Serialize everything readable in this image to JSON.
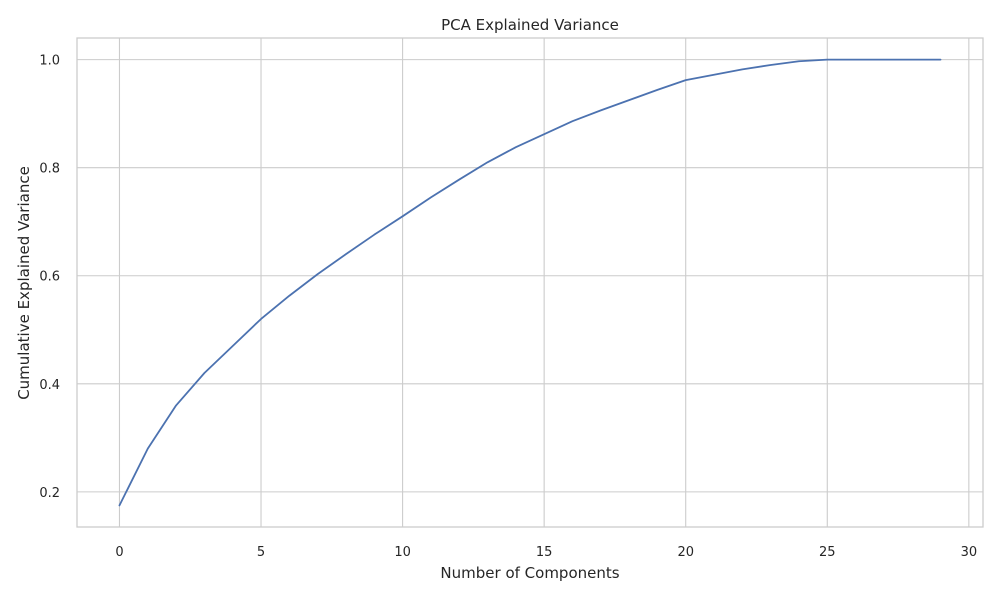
{
  "chart_data": {
    "type": "line",
    "title": "PCA Explained Variance",
    "xlabel": "Number of Components",
    "ylabel": "Cumulative Explained Variance",
    "xlim": [
      -1.5,
      30.5
    ],
    "ylim": [
      0.135,
      1.04
    ],
    "xticks": [
      0,
      5,
      10,
      15,
      20,
      25,
      30
    ],
    "xtick_labels": [
      "0",
      "5",
      "10",
      "15",
      "20",
      "25",
      "30"
    ],
    "yticks": [
      0.2,
      0.4,
      0.6,
      0.8,
      1.0
    ],
    "ytick_labels": [
      "0.2",
      "0.4",
      "0.6",
      "0.8",
      "1.0"
    ],
    "grid": true,
    "series": [
      {
        "name": "cumulative explained variance",
        "color": "#4c72b0",
        "x": [
          0,
          1,
          2,
          3,
          4,
          5,
          6,
          7,
          8,
          9,
          10,
          11,
          12,
          13,
          14,
          15,
          16,
          17,
          18,
          19,
          20,
          21,
          22,
          23,
          24,
          25,
          26,
          27,
          28,
          29
        ],
        "y": [
          0.175,
          0.28,
          0.36,
          0.42,
          0.47,
          0.52,
          0.563,
          0.603,
          0.64,
          0.676,
          0.71,
          0.745,
          0.778,
          0.81,
          0.838,
          0.862,
          0.886,
          0.906,
          0.925,
          0.944,
          0.962,
          0.972,
          0.982,
          0.99,
          0.997,
          1.0,
          1.0,
          1.0,
          1.0,
          1.0
        ]
      }
    ]
  }
}
